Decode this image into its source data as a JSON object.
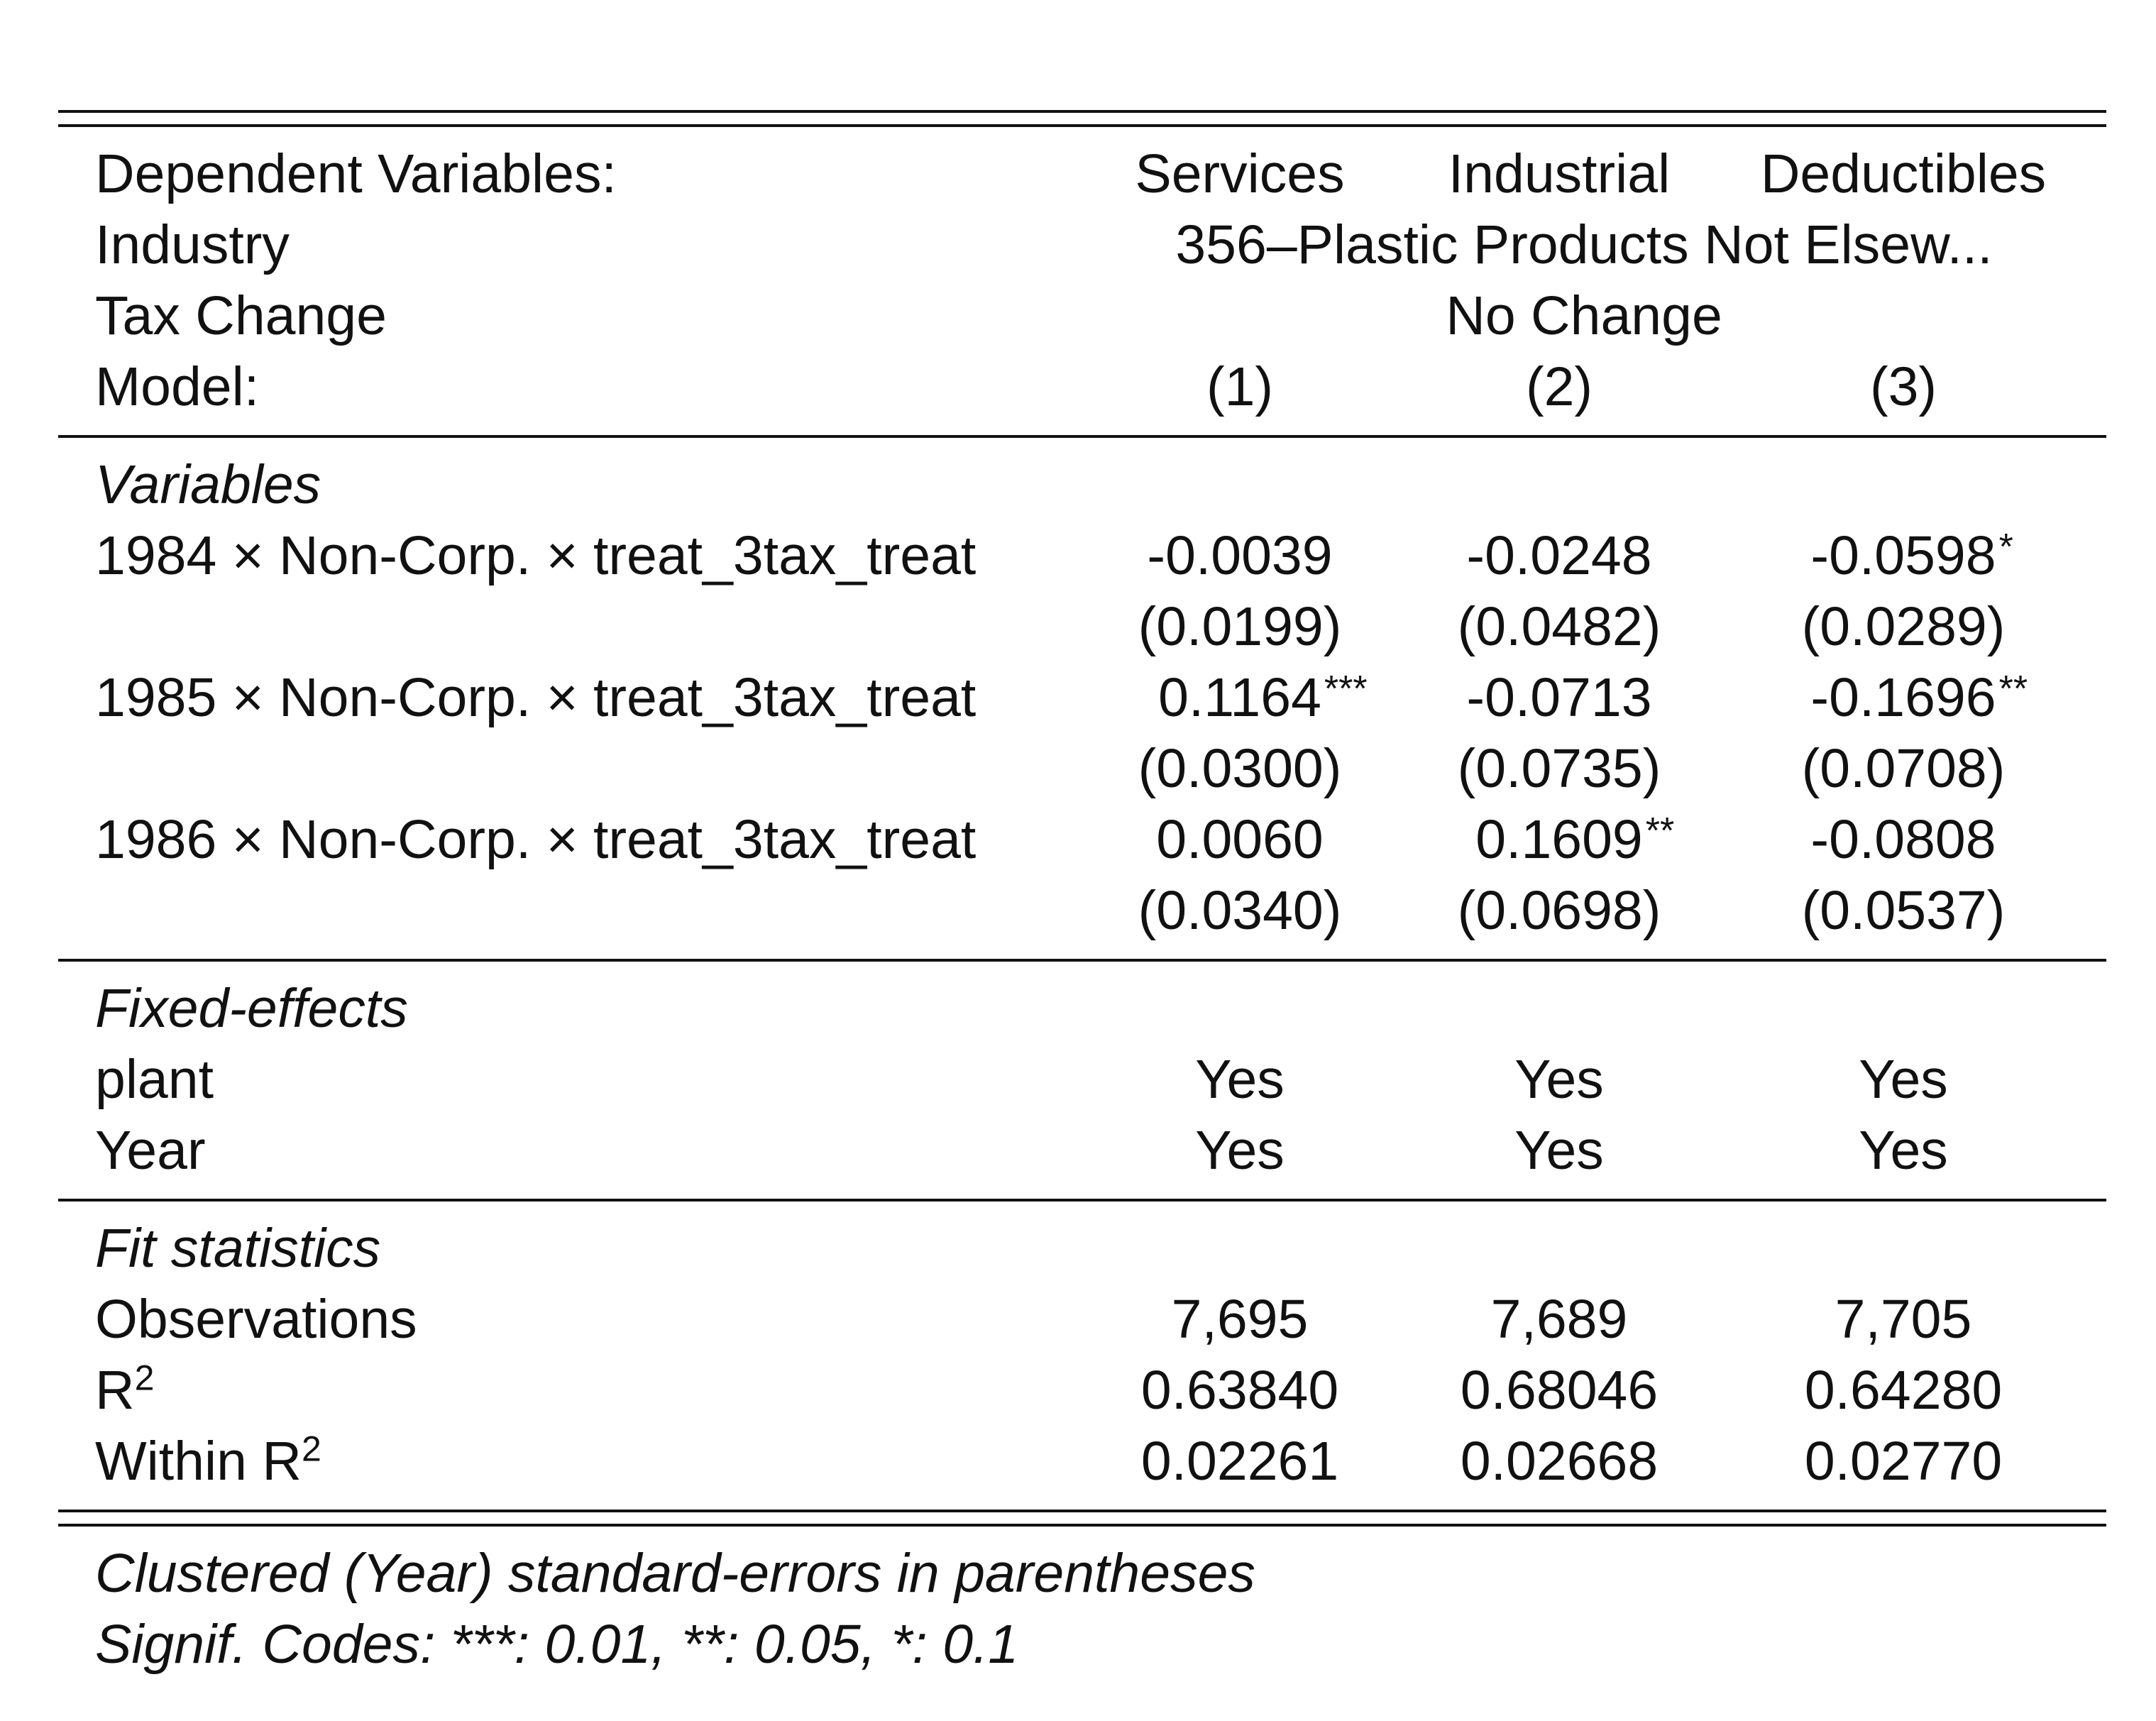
{
  "header": {
    "dependent_label": "Dependent Variables:",
    "dependent": [
      "Services",
      "Industrial",
      "Deductibles"
    ],
    "industry_label": "Industry",
    "industry_value": "356–Plastic Products Not Elsew...",
    "tax_label": "Tax Change",
    "tax_value": "No Change",
    "model_label": "Model:",
    "models": [
      "(1)",
      "(2)",
      "(3)"
    ]
  },
  "variables": {
    "title": "Variables",
    "rows": [
      {
        "label": "1984 × Non-Corp. × treat_3tax_treat",
        "coef": [
          "-0.0039",
          "-0.0248",
          "-0.0598"
        ],
        "stars": [
          "",
          "",
          "*"
        ],
        "se": [
          "(0.0199)",
          "(0.0482)",
          "(0.0289)"
        ]
      },
      {
        "label": "1985 × Non-Corp. × treat_3tax_treat",
        "coef": [
          "0.1164",
          "-0.0713",
          "-0.1696"
        ],
        "stars": [
          "***",
          "",
          "**"
        ],
        "se": [
          "(0.0300)",
          "(0.0735)",
          "(0.0708)"
        ]
      },
      {
        "label": "1986 × Non-Corp. × treat_3tax_treat",
        "coef": [
          "0.0060",
          "0.1609",
          "-0.0808"
        ],
        "stars": [
          "",
          "**",
          ""
        ],
        "se": [
          "(0.0340)",
          "(0.0698)",
          "(0.0537)"
        ]
      }
    ]
  },
  "fixed_effects": {
    "title": "Fixed-effects",
    "rows": [
      {
        "label": "plant",
        "values": [
          "Yes",
          "Yes",
          "Yes"
        ]
      },
      {
        "label": "Year",
        "values": [
          "Yes",
          "Yes",
          "Yes"
        ]
      }
    ]
  },
  "fit": {
    "title": "Fit statistics",
    "observations_label": "Observations",
    "observations": [
      "7,695",
      "7,689",
      "7,705"
    ],
    "r2_label": "R",
    "r2_sup": "2",
    "r2": [
      "0.63840",
      "0.68046",
      "0.64280"
    ],
    "within_label": "Within R",
    "within_sup": "2",
    "within_r2": [
      "0.02261",
      "0.02668",
      "0.02770"
    ]
  },
  "notes": {
    "line1": "Clustered (Year) standard-errors in parentheses",
    "line2": "Signif. Codes: ***: 0.01, **: 0.05, *: 0.1"
  }
}
